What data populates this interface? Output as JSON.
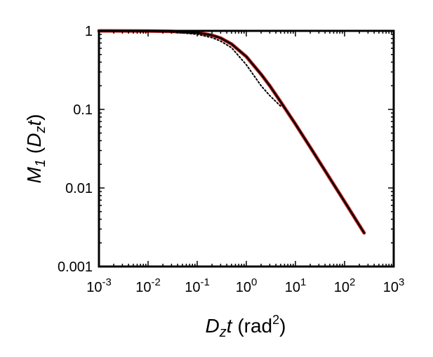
{
  "chart_data": {
    "type": "line",
    "xscale": "log",
    "yscale": "log",
    "xlim": [
      0.001,
      1000
    ],
    "ylim": [
      0.001,
      1
    ],
    "grid": false,
    "legend": "none",
    "ylabel": {
      "main": "M",
      "sub1": "1",
      "open": " (",
      "d": "D",
      "dsub": "z",
      "t": "t",
      "close": ")"
    },
    "xlabel": {
      "d": "D",
      "dsub": "z",
      "t": "t",
      "unit": " (rad",
      "sup": "2",
      "close": ")"
    },
    "x_ticks": [
      {
        "base": "10",
        "exp": "-3"
      },
      {
        "base": "10",
        "exp": "-2"
      },
      {
        "base": "10",
        "exp": "-1"
      },
      {
        "base": "10",
        "exp": "0"
      },
      {
        "base": "10",
        "exp": "1"
      },
      {
        "base": "10",
        "exp": "2"
      },
      {
        "base": "10",
        "exp": "3"
      }
    ],
    "x_tick_values": [
      0.001,
      0.01,
      0.1,
      1,
      10,
      100,
      1000
    ],
    "y_ticks": [
      "1",
      "0.1",
      "0.01",
      "0.001"
    ],
    "y_tick_values": [
      1,
      0.1,
      0.01,
      0.001
    ],
    "series": [
      {
        "style": "solid",
        "color": "#cc2222",
        "x": [
          0.001,
          0.01,
          0.03,
          0.1,
          0.2,
          0.3,
          0.5,
          1,
          2,
          3,
          5,
          10,
          20,
          50,
          100,
          250
        ],
        "y": [
          1,
          0.995,
          0.985,
          0.95,
          0.88,
          0.81,
          0.68,
          0.47,
          0.28,
          0.2,
          0.125,
          0.065,
          0.033,
          0.0133,
          0.0067,
          0.00268
        ]
      },
      {
        "style": "solid",
        "color": "#000000",
        "x": [
          0.001,
          0.01,
          0.03,
          0.1,
          0.2,
          0.3,
          0.5,
          1,
          2,
          3,
          5,
          10,
          20,
          50,
          100,
          250
        ],
        "y": [
          1,
          0.995,
          0.985,
          0.95,
          0.88,
          0.81,
          0.68,
          0.47,
          0.28,
          0.2,
          0.125,
          0.065,
          0.033,
          0.0133,
          0.0067,
          0.00268
        ]
      },
      {
        "style": "dotted",
        "color": "#000000",
        "x": [
          0.001,
          0.01,
          0.03,
          0.1,
          0.2,
          0.3,
          0.5,
          1,
          2,
          3,
          5
        ],
        "y": [
          1,
          0.99,
          0.97,
          0.905,
          0.82,
          0.74,
          0.61,
          0.37,
          0.2,
          0.15,
          0.11
        ]
      }
    ]
  }
}
